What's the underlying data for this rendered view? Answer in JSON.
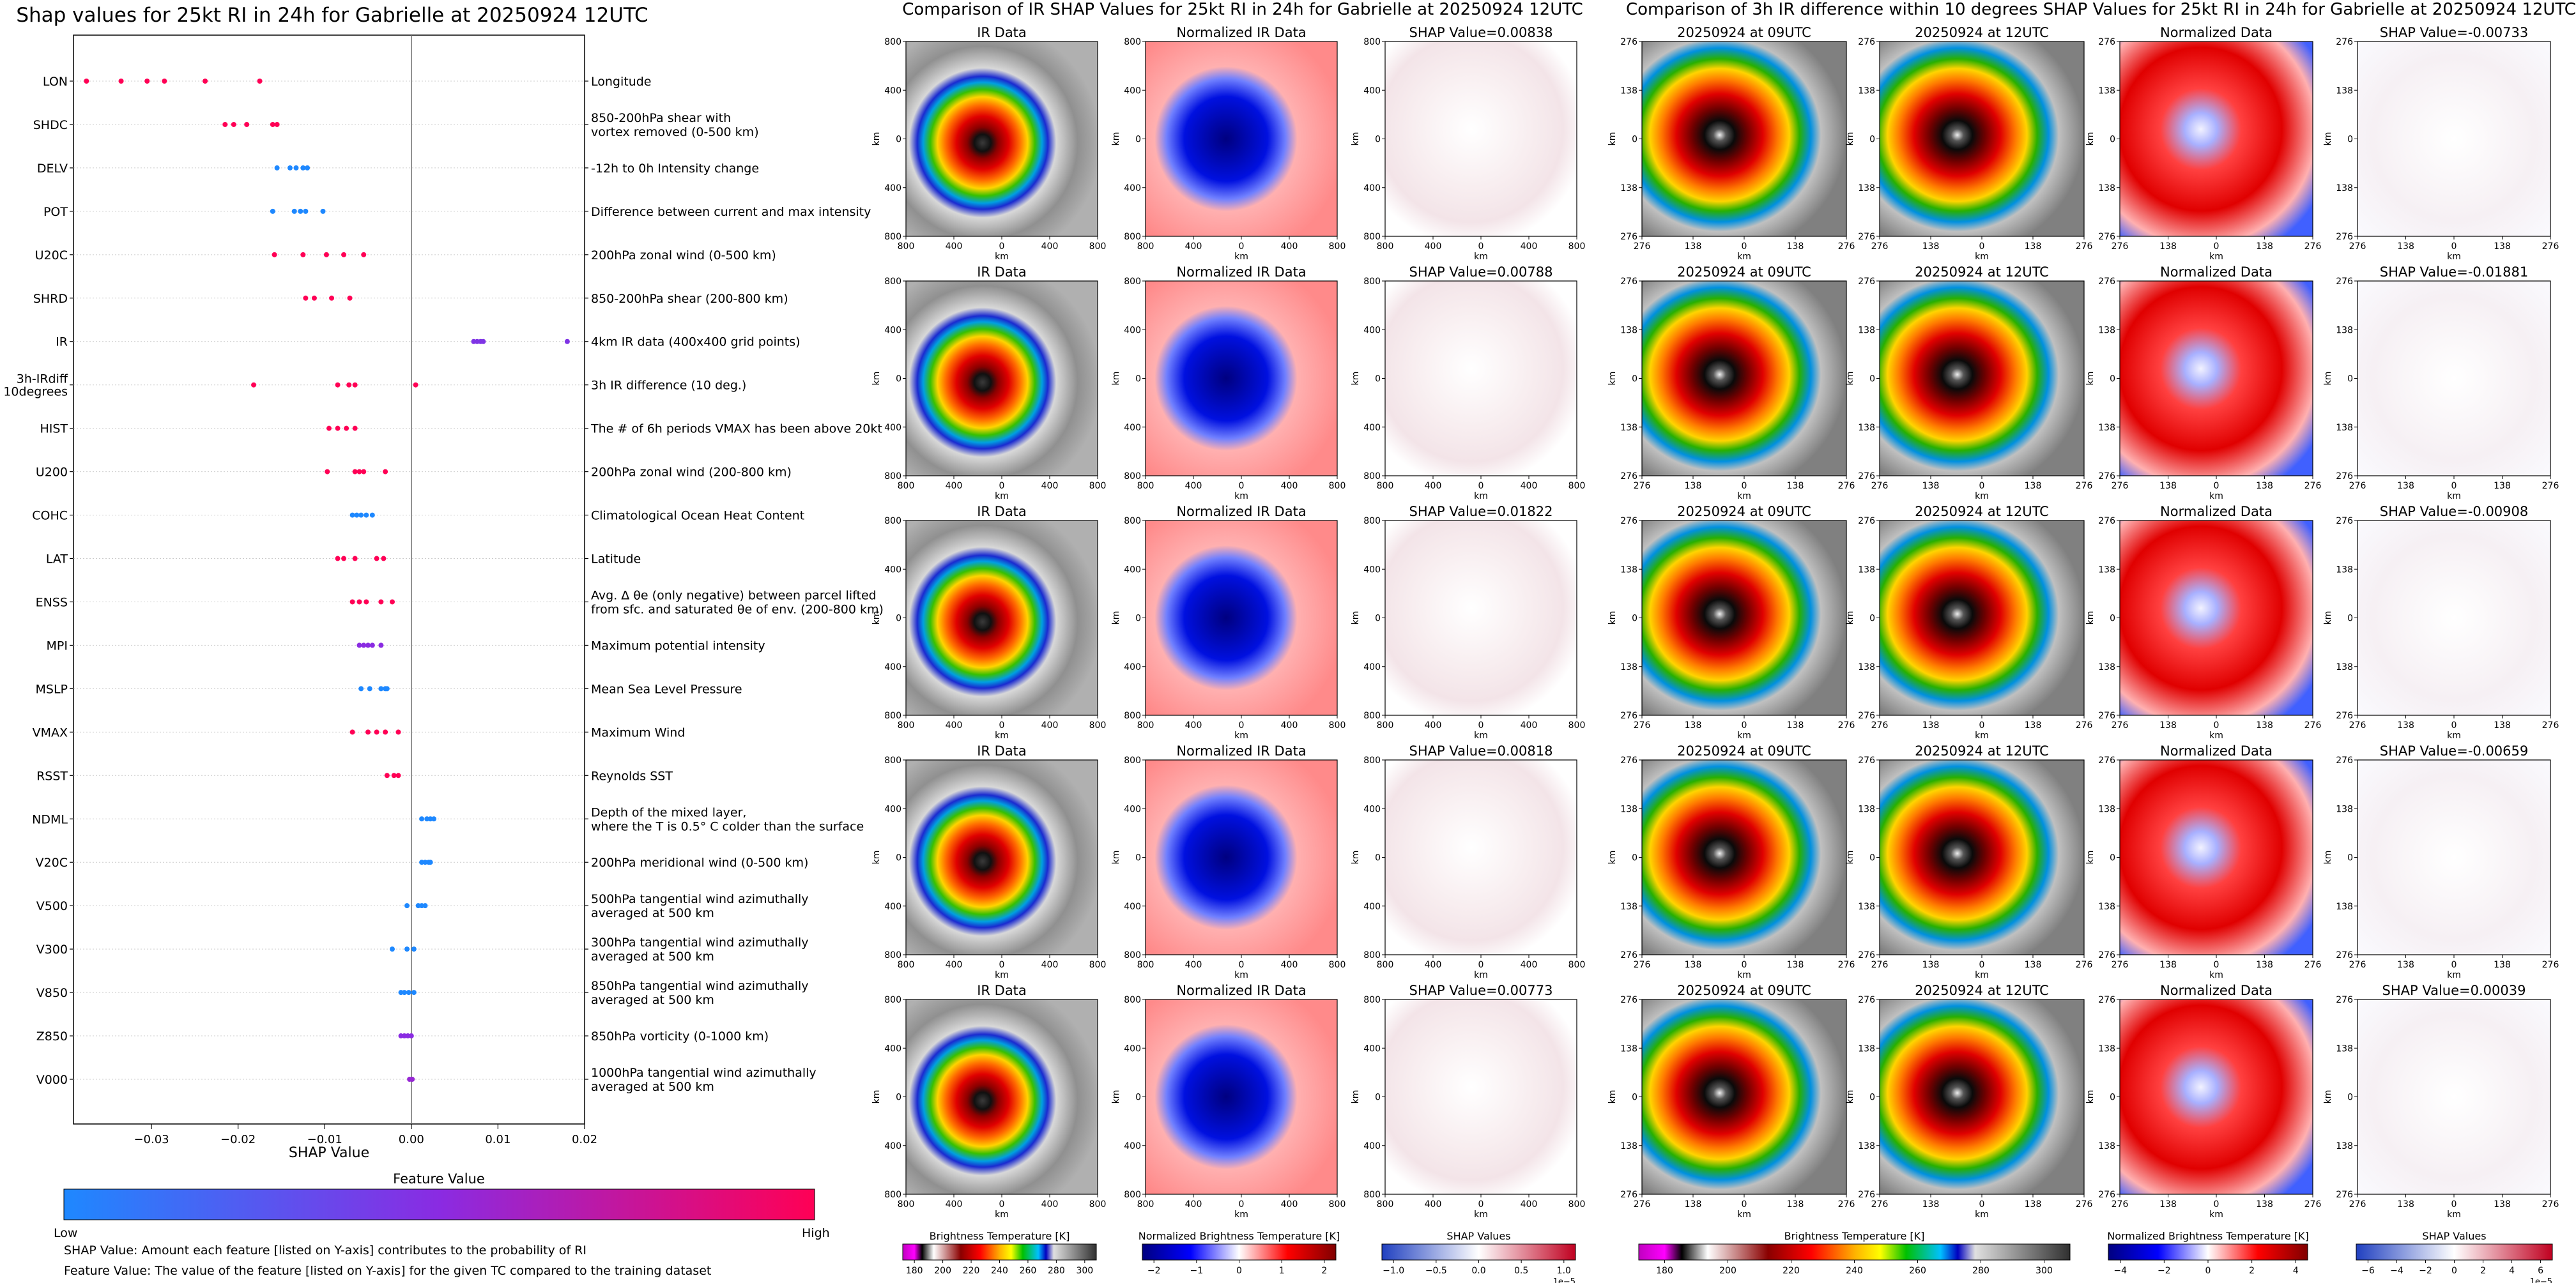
{
  "colors": {
    "shap_low": "#1e88ff",
    "shap_mid": "#8a2be2",
    "shap_high": "#ff0055",
    "shap_pos_map": "#e0312c",
    "shap_neg_map": "#2b53d6"
  },
  "chart_data": [
    {
      "type": "scatter",
      "title": "Shap values for 25kt RI in 24h for Gabrielle at 20250924 12UTC",
      "xlabel": "SHAP Value",
      "xlim": [
        -0.039,
        0.02
      ],
      "xticks": [
        -0.03,
        -0.02,
        -0.01,
        0.0,
        0.01,
        0.02
      ],
      "xtick_labels": [
        "−0.03",
        "−0.02",
        "−0.01",
        "0.00",
        "0.01",
        "0.02"
      ],
      "features": [
        {
          "name": "LON",
          "description": [
            "Longitude"
          ],
          "points": [
            [
              -0.0375,
              1.0
            ],
            [
              -0.0335,
              1.0
            ],
            [
              -0.0305,
              1.0
            ],
            [
              -0.0285,
              1.0
            ],
            [
              -0.0238,
              1.0
            ],
            [
              -0.0175,
              1.0
            ]
          ]
        },
        {
          "name": "SHDC",
          "description": [
            "850-200hPa shear with",
            "vortex removed (0-500 km)"
          ],
          "points": [
            [
              -0.0215,
              1.0
            ],
            [
              -0.0205,
              1.0
            ],
            [
              -0.019,
              1.0
            ],
            [
              -0.016,
              1.0
            ],
            [
              -0.0155,
              1.0
            ]
          ]
        },
        {
          "name": "DELV",
          "description": [
            "-12h to 0h Intensity change"
          ],
          "points": [
            [
              -0.0155,
              0.0
            ],
            [
              -0.014,
              0.0
            ],
            [
              -0.0133,
              0.0
            ],
            [
              -0.0125,
              0.0
            ],
            [
              -0.012,
              0.0
            ]
          ]
        },
        {
          "name": "POT",
          "description": [
            "Difference between current and max intensity"
          ],
          "points": [
            [
              -0.016,
              0.0
            ],
            [
              -0.0135,
              0.0
            ],
            [
              -0.0128,
              0.0
            ],
            [
              -0.0122,
              0.0
            ],
            [
              -0.0102,
              0.0
            ]
          ]
        },
        {
          "name": "U20C",
          "description": [
            "200hPa zonal wind (0-500 km)"
          ],
          "points": [
            [
              -0.0158,
              1.0
            ],
            [
              -0.0125,
              1.0
            ],
            [
              -0.0098,
              1.0
            ],
            [
              -0.0078,
              1.0
            ],
            [
              -0.0055,
              1.0
            ]
          ]
        },
        {
          "name": "SHRD",
          "description": [
            "850-200hPa shear (200-800 km)"
          ],
          "points": [
            [
              -0.0122,
              1.0
            ],
            [
              -0.0112,
              1.0
            ],
            [
              -0.0092,
              1.0
            ],
            [
              -0.0071,
              1.0
            ]
          ]
        },
        {
          "name": "IR",
          "description": [
            "4km IR data (400x400 grid points)"
          ],
          "points": [
            [
              0.0072,
              0.45
            ],
            [
              0.0076,
              0.45
            ],
            [
              0.008,
              0.45
            ],
            [
              0.0083,
              0.45
            ],
            [
              0.018,
              0.45
            ]
          ]
        },
        {
          "name": "3h-IRdiff 10degrees",
          "label_lines": [
            "3h-IRdiff",
            "10degrees"
          ],
          "description": [
            "3h IR difference (10 deg.)"
          ],
          "points": [
            [
              -0.0182,
              1.0
            ],
            [
              -0.0085,
              1.0
            ],
            [
              -0.0072,
              1.0
            ],
            [
              -0.0065,
              1.0
            ],
            [
              0.0005,
              1.0
            ]
          ]
        },
        {
          "name": "HIST",
          "description": [
            "The # of 6h periods VMAX has been above 20kt"
          ],
          "points": [
            [
              -0.0095,
              1.0
            ],
            [
              -0.0085,
              1.0
            ],
            [
              -0.0075,
              1.0
            ],
            [
              -0.0065,
              1.0
            ]
          ]
        },
        {
          "name": "U200",
          "description": [
            "200hPa zonal wind (200-800 km)"
          ],
          "points": [
            [
              -0.0097,
              1.0
            ],
            [
              -0.0065,
              1.0
            ],
            [
              -0.006,
              1.0
            ],
            [
              -0.0055,
              1.0
            ],
            [
              -0.003,
              1.0
            ]
          ]
        },
        {
          "name": "COHC",
          "description": [
            "Climatological Ocean Heat Content"
          ],
          "points": [
            [
              -0.0068,
              0.0
            ],
            [
              -0.0063,
              0.0
            ],
            [
              -0.0058,
              0.0
            ],
            [
              -0.0052,
              0.0
            ],
            [
              -0.0045,
              0.0
            ]
          ]
        },
        {
          "name": "LAT",
          "description": [
            "Latitude"
          ],
          "points": [
            [
              -0.0085,
              1.0
            ],
            [
              -0.0078,
              1.0
            ],
            [
              -0.0065,
              1.0
            ],
            [
              -0.004,
              1.0
            ],
            [
              -0.0032,
              1.0
            ]
          ]
        },
        {
          "name": "ENSS",
          "description": [
            "Avg. Δ θe (only negative) between parcel lifted",
            "from sfc. and saturated θe of env. (200-800 km)"
          ],
          "points": [
            [
              -0.0068,
              1.0
            ],
            [
              -0.006,
              1.0
            ],
            [
              -0.0052,
              1.0
            ],
            [
              -0.0035,
              1.0
            ],
            [
              -0.0022,
              1.0
            ]
          ]
        },
        {
          "name": "MPI",
          "description": [
            "Maximum potential intensity"
          ],
          "points": [
            [
              -0.006,
              0.5
            ],
            [
              -0.0055,
              0.5
            ],
            [
              -0.005,
              0.5
            ],
            [
              -0.0045,
              0.5
            ],
            [
              -0.0035,
              0.5
            ]
          ]
        },
        {
          "name": "MSLP",
          "description": [
            "Mean Sea Level Pressure"
          ],
          "points": [
            [
              -0.0058,
              0.0
            ],
            [
              -0.0048,
              0.0
            ],
            [
              -0.0035,
              0.0
            ],
            [
              -0.003,
              0.0
            ],
            [
              -0.0028,
              0.0
            ]
          ]
        },
        {
          "name": "VMAX",
          "description": [
            "Maximum Wind"
          ],
          "points": [
            [
              -0.0068,
              1.0
            ],
            [
              -0.005,
              1.0
            ],
            [
              -0.004,
              1.0
            ],
            [
              -0.003,
              1.0
            ],
            [
              -0.0015,
              1.0
            ]
          ]
        },
        {
          "name": "RSST",
          "description": [
            "Reynolds SST"
          ],
          "points": [
            [
              -0.0028,
              1.0
            ],
            [
              -0.002,
              1.0
            ],
            [
              -0.0015,
              1.0
            ]
          ]
        },
        {
          "name": "NDML",
          "description": [
            "Depth of the mixed layer,",
            "where the T is 0.5° C colder than the surface"
          ],
          "points": [
            [
              0.0012,
              0.0
            ],
            [
              0.0018,
              0.0
            ],
            [
              0.0022,
              0.0
            ],
            [
              0.0026,
              0.0
            ]
          ]
        },
        {
          "name": "V20C",
          "description": [
            "200hPa meridional wind (0-500 km)"
          ],
          "points": [
            [
              0.0012,
              0.0
            ],
            [
              0.0016,
              0.0
            ],
            [
              0.002,
              0.0
            ],
            [
              0.0022,
              0.0
            ]
          ]
        },
        {
          "name": "V500",
          "description": [
            "500hPa tangential wind azimuthally",
            "averaged at 500 km"
          ],
          "points": [
            [
              -0.0005,
              0.0
            ],
            [
              0.0008,
              0.0
            ],
            [
              0.0012,
              0.0
            ],
            [
              0.0016,
              0.0
            ]
          ]
        },
        {
          "name": "V300",
          "description": [
            "300hPa tangential wind azimuthally",
            "averaged at 500 km"
          ],
          "points": [
            [
              -0.0022,
              0.0
            ],
            [
              -0.0005,
              0.0
            ],
            [
              0.0003,
              0.0
            ]
          ]
        },
        {
          "name": "V850",
          "description": [
            "850hPa tangential wind azimuthally",
            "averaged at 500 km"
          ],
          "points": [
            [
              -0.0012,
              0.0
            ],
            [
              -0.0008,
              0.0
            ],
            [
              -0.0003,
              0.0
            ],
            [
              0.0003,
              0.0
            ]
          ]
        },
        {
          "name": "Z850",
          "description": [
            "850hPa vorticity (0-1000 km)"
          ],
          "points": [
            [
              -0.0012,
              0.5
            ],
            [
              -0.0008,
              0.5
            ],
            [
              -0.0004,
              0.5
            ],
            [
              0.0,
              0.5
            ]
          ]
        },
        {
          "name": "V000",
          "description": [
            "1000hPa tangential wind azimuthally",
            "averaged at 500 km"
          ],
          "points": [
            [
              -0.0002,
              0.55
            ],
            [
              0.0001,
              0.55
            ]
          ]
        }
      ],
      "colorbar": {
        "label": "Feature Value",
        "low": "Low",
        "high": "High"
      },
      "notes": [
        "SHAP Value: Amount each feature [listed on Y-axis] contributes to the probability of RI",
        "Feature Value: The value of the feature [listed on Y-axis] for the given TC compared to the training dataset"
      ]
    },
    {
      "type": "heatmap",
      "title": "Comparison of IR SHAP Values for 25kt RI in 24h for Gabrielle at 20250924 12UTC",
      "xlabel": "km",
      "ylabel": "km",
      "ticks": [
        "800",
        "400",
        "0",
        "400",
        "800"
      ],
      "column_titles": [
        "IR Data",
        "Normalized IR Data"
      ],
      "shap_titles": [
        "SHAP Value=0.00838",
        "SHAP Value=0.00788",
        "SHAP Value=0.01822",
        "SHAP Value=0.00818",
        "SHAP Value=0.00773"
      ],
      "colorbars": [
        {
          "label": "Brightness Temperature [K]",
          "ticks": [
            "180",
            "200",
            "220",
            "240",
            "260",
            "280",
            "300"
          ]
        },
        {
          "label": "Normalized Brightness Temperature [K]",
          "ticks": [
            "−2",
            "−1",
            "0",
            "1",
            "2"
          ]
        },
        {
          "label": "SHAP Values",
          "ticks": [
            "−1.0",
            "−0.5",
            "0.0",
            "0.5",
            "1.0"
          ],
          "offset": "1e−5"
        }
      ]
    },
    {
      "type": "heatmap",
      "title": "Comparison of 3h IR difference within 10 degrees SHAP Values for 25kt RI in 24h for Gabrielle at 20250924 12UTC",
      "xlabel": "km",
      "ylabel": "km",
      "ticks": [
        "276",
        "138",
        "0",
        "138",
        "276"
      ],
      "column_titles": [
        "20250924 at 09UTC",
        "20250924 at 12UTC",
        "Normalized Data"
      ],
      "shap_titles": [
        "SHAP Value=-0.00733",
        "SHAP Value=-0.01881",
        "SHAP Value=-0.00908",
        "SHAP Value=-0.00659",
        "SHAP Value=0.00039"
      ],
      "colorbars": [
        {
          "label": "Brightness Temperature [K]",
          "ticks": [
            "180",
            "200",
            "220",
            "240",
            "260",
            "280",
            "300"
          ]
        },
        {
          "label": "Normalized Brightness Temperature [K]",
          "ticks": [
            "−4",
            "−2",
            "0",
            "2",
            "4"
          ]
        },
        {
          "label": "SHAP Values",
          "ticks": [
            "−6",
            "−4",
            "−2",
            "0",
            "2",
            "4",
            "6"
          ],
          "offset": "1e−5"
        }
      ]
    }
  ]
}
